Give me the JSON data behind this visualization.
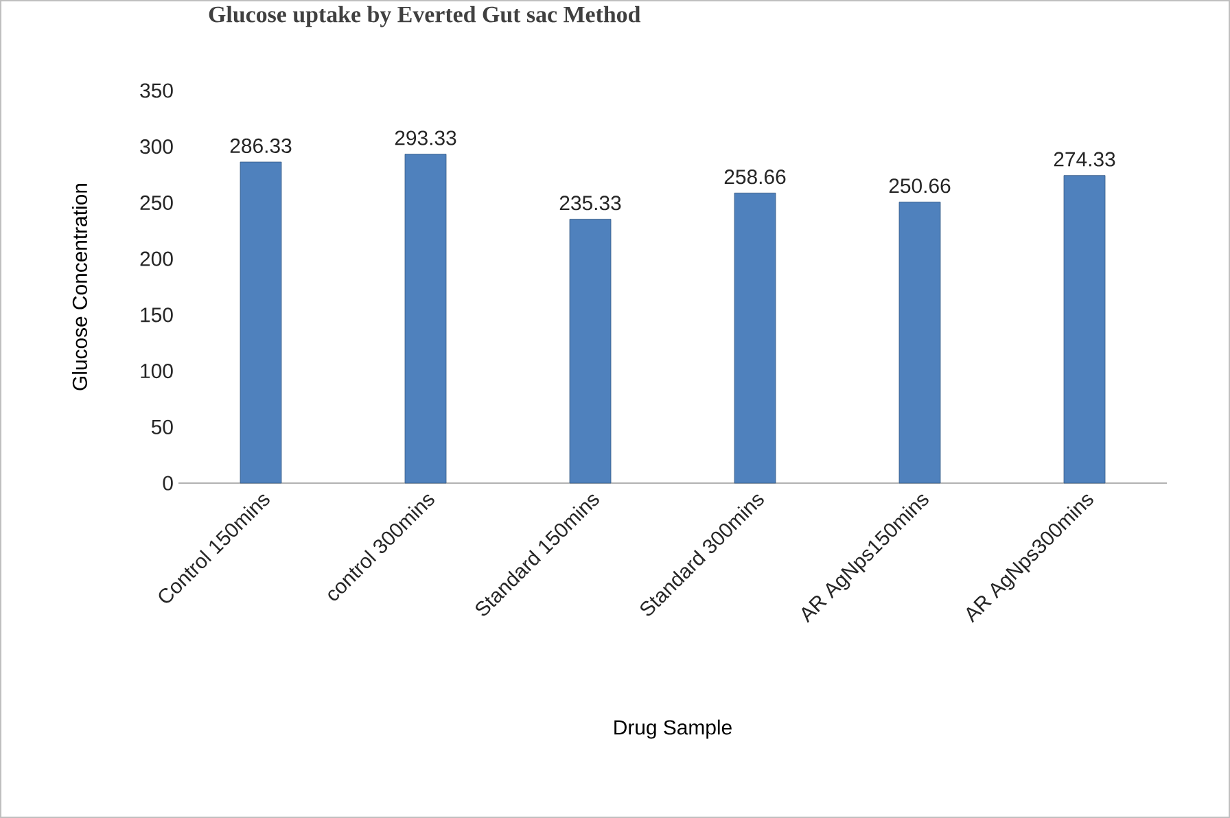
{
  "chart_data": {
    "type": "bar",
    "title": "Glucose uptake by Everted Gut sac Method",
    "xlabel": "Drug Sample",
    "ylabel": "Glucose Concentration",
    "categories": [
      "Control 150mins",
      "control 300mins",
      "Standard 150mins",
      "Standard 300mins",
      "AR AgNps150mins",
      "AR AgNps300mins"
    ],
    "values": [
      286.33,
      293.33,
      235.33,
      258.66,
      250.66,
      274.33
    ],
    "color": "#4f81bd",
    "ylim": [
      0,
      350
    ],
    "yticks": [
      0,
      50,
      100,
      150,
      200,
      250,
      300,
      350
    ],
    "data_labels": true
  }
}
